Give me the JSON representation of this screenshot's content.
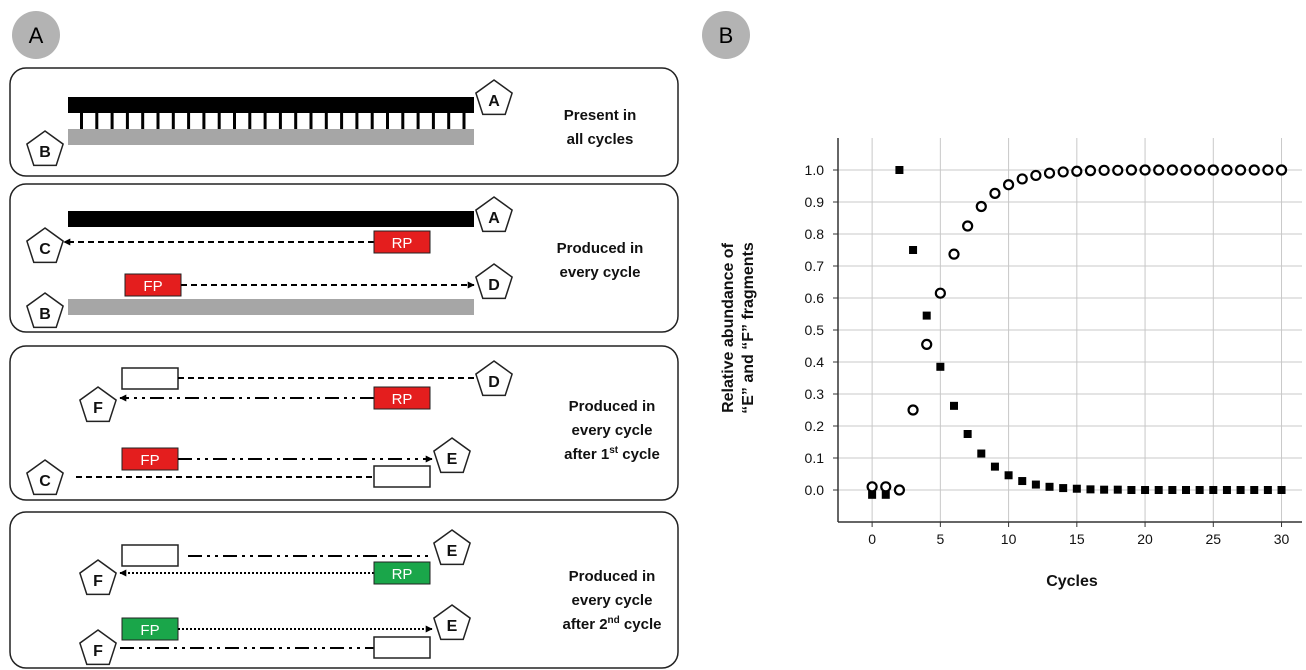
{
  "panels": {
    "a_label": "A",
    "b_label": "B"
  },
  "boxes": [
    {
      "lines": [
        "Present in",
        "all cycles"
      ]
    },
    {
      "lines": [
        "Produced in",
        "every cycle"
      ]
    },
    {
      "lines": [
        "Produced in",
        "every cycle",
        "after 1st cycle"
      ]
    },
    {
      "lines": [
        "Produced in",
        "every cycle",
        "after 2nd cycle"
      ]
    }
  ],
  "superscripts": {
    "st": "st",
    "nd": "nd"
  },
  "node_letters": {
    "a": "A",
    "b": "B",
    "c": "C",
    "d": "D",
    "e": "E",
    "f": "F"
  },
  "primers": {
    "rp": "RP",
    "fp": "FP"
  },
  "colors": {
    "red_primer": "#e41e1e",
    "green_primer": "#1aa64a",
    "template_black": "#000000",
    "template_gray": "#a6a6a6",
    "label_circle": "#b3b3b3"
  },
  "chart_data": {
    "type": "scatter",
    "xlabel": "Cycles",
    "ylabel_lines": [
      "Relative abundance of",
      "“E” and “F” fragments"
    ],
    "xlim": [
      -2.5,
      31.5
    ],
    "ylim": [
      -0.1,
      1.1
    ],
    "xticks": [
      0,
      5,
      10,
      15,
      20,
      25,
      30
    ],
    "yticks": [
      0.0,
      0.1,
      0.2,
      0.3,
      0.4,
      0.5,
      0.6,
      0.7,
      0.8,
      0.9,
      1.0
    ],
    "ytick_labels": [
      "0.0",
      "0.1",
      "0.2",
      "0.3",
      "0.4",
      "0.5",
      "0.6",
      "0.7",
      "0.8",
      "0.9",
      "1.0"
    ],
    "grid": true,
    "series": [
      {
        "marker": "square-filled",
        "x": [
          0,
          1,
          2,
          3,
          4,
          5,
          6,
          7,
          8,
          9,
          10,
          11,
          12,
          13,
          14,
          15,
          16,
          17,
          18,
          19,
          20,
          21,
          22,
          23,
          24,
          25,
          26,
          27,
          28,
          29,
          30
        ],
        "y": [
          -0.015,
          -0.015,
          1.0,
          0.75,
          0.545,
          0.385,
          0.263,
          0.175,
          0.114,
          0.073,
          0.046,
          0.028,
          0.017,
          0.01,
          0.006,
          0.004,
          0.002,
          0.001,
          0.001,
          0,
          0,
          0,
          0,
          0,
          0,
          0,
          0,
          0,
          0,
          0,
          0
        ]
      },
      {
        "marker": "circle-open",
        "x": [
          0,
          1,
          2,
          3,
          4,
          5,
          6,
          7,
          8,
          9,
          10,
          11,
          12,
          13,
          14,
          15,
          16,
          17,
          18,
          19,
          20,
          21,
          22,
          23,
          24,
          25,
          26,
          27,
          28,
          29,
          30
        ],
        "y": [
          0.01,
          0.01,
          0.0,
          0.25,
          0.455,
          0.615,
          0.737,
          0.825,
          0.886,
          0.927,
          0.954,
          0.972,
          0.983,
          0.99,
          0.994,
          0.996,
          0.998,
          0.999,
          0.999,
          1.0,
          1.0,
          1.0,
          1.0,
          1.0,
          1.0,
          1.0,
          1.0,
          1.0,
          1.0,
          1.0,
          1.0
        ]
      }
    ]
  }
}
